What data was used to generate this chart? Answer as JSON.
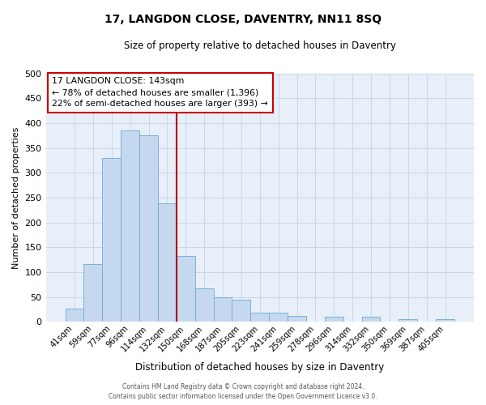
{
  "title": "17, LANGDON CLOSE, DAVENTRY, NN11 8SQ",
  "subtitle": "Size of property relative to detached houses in Daventry",
  "xlabel": "Distribution of detached houses by size in Daventry",
  "ylabel": "Number of detached properties",
  "bar_labels": [
    "41sqm",
    "59sqm",
    "77sqm",
    "96sqm",
    "114sqm",
    "132sqm",
    "150sqm",
    "168sqm",
    "187sqm",
    "205sqm",
    "223sqm",
    "241sqm",
    "259sqm",
    "278sqm",
    "296sqm",
    "314sqm",
    "332sqm",
    "350sqm",
    "369sqm",
    "387sqm",
    "405sqm"
  ],
  "bar_values": [
    27,
    116,
    330,
    385,
    375,
    238,
    132,
    67,
    50,
    45,
    18,
    18,
    13,
    0,
    10,
    0,
    10,
    0,
    5,
    0,
    5
  ],
  "bar_color": "#c5d8f0",
  "bar_edgecolor": "#6aabd2",
  "vline_x": 5.5,
  "vline_color": "#aa0000",
  "annotation_title": "17 LANGDON CLOSE: 143sqm",
  "annotation_line1": "← 78% of detached houses are smaller (1,396)",
  "annotation_line2": "22% of semi-detached houses are larger (393) →",
  "annotation_box_facecolor": "#ffffff",
  "annotation_box_edgecolor": "#cc0000",
  "ylim": [
    0,
    500
  ],
  "yticks": [
    0,
    50,
    100,
    150,
    200,
    250,
    300,
    350,
    400,
    450,
    500
  ],
  "grid_color": "#c8d8ea",
  "background_color": "#e8eff8",
  "footer1": "Contains HM Land Registry data © Crown copyright and database right 2024.",
  "footer2": "Contains public sector information licensed under the Open Government Licence v3.0."
}
